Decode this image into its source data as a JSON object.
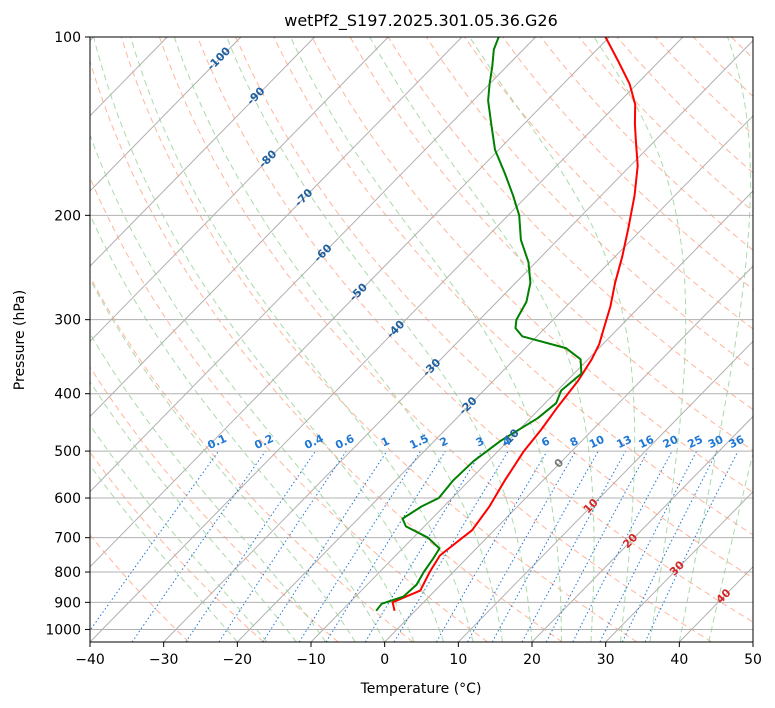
{
  "chart_data": {
    "type": "line",
    "title": "wetPf2_S197.2025.301.05.36.G26",
    "xlabel": "Temperature (°C)",
    "ylabel": "Pressure (hPa)",
    "xlim": [
      -40,
      50
    ],
    "ylim": [
      1050,
      100
    ],
    "y_scale": "log",
    "grid": true,
    "x_ticks": [
      -40,
      -30,
      -20,
      -10,
      0,
      10,
      20,
      30,
      40,
      50
    ],
    "x_tick_labels": [
      "−40",
      "−30",
      "−20",
      "−10",
      "0",
      "10",
      "20",
      "30",
      "40",
      "50"
    ],
    "y_ticks": [
      100,
      200,
      300,
      400,
      500,
      600,
      700,
      800,
      900,
      1000
    ],
    "y_tick_labels": [
      "100",
      "200",
      "300",
      "400",
      "500",
      "600",
      "700",
      "800",
      "900",
      "1000"
    ],
    "colors": {
      "temperature": "#ff0000",
      "dewpoint": "#008000",
      "isotherm_grid": "#b0b0b0",
      "dry_adiabat": "#ff9c7a",
      "moist_adiabat": "#8fcc8f",
      "mixing_ratio": "#1f77d4",
      "isotherm_labels": "#1f5fa0",
      "warm_labels": "#d62728"
    },
    "series": [
      {
        "key": "temperature",
        "points": [
          [
            -2.8,
            930
          ],
          [
            -4.2,
            900
          ],
          [
            -2.0,
            860
          ],
          [
            -3.2,
            800
          ],
          [
            -4.0,
            750
          ],
          [
            -3.0,
            680
          ],
          [
            -3.8,
            620
          ],
          [
            -5.2,
            560
          ],
          [
            -6.5,
            500
          ],
          [
            -7.0,
            460
          ],
          [
            -7.8,
            420
          ],
          [
            -8.5,
            380
          ],
          [
            -9.5,
            350
          ],
          [
            -10.5,
            330
          ],
          [
            -12.0,
            310
          ],
          [
            -14.0,
            285
          ],
          [
            -16.5,
            260
          ],
          [
            -19.0,
            235
          ],
          [
            -22.0,
            210
          ],
          [
            -25.5,
            185
          ],
          [
            -29.0,
            165
          ],
          [
            -32.5,
            150
          ],
          [
            -35.0,
            140
          ],
          [
            -37.5,
            130
          ],
          [
            -41.0,
            120
          ],
          [
            -45.5,
            110
          ],
          [
            -50.5,
            100
          ]
        ]
      },
      {
        "key": "dewpoint",
        "points": [
          [
            -5.3,
            930
          ],
          [
            -5.5,
            905
          ],
          [
            -3.5,
            880
          ],
          [
            -3.3,
            840
          ],
          [
            -4.0,
            800
          ],
          [
            -4.5,
            760
          ],
          [
            -5.0,
            730
          ],
          [
            -8.0,
            700
          ],
          [
            -12.5,
            670
          ],
          [
            -14.0,
            650
          ],
          [
            -13.0,
            620
          ],
          [
            -11.8,
            600
          ],
          [
            -12.2,
            560
          ],
          [
            -12.0,
            520
          ],
          [
            -11.0,
            480
          ],
          [
            -9.0,
            440
          ],
          [
            -8.5,
            415
          ],
          [
            -9.5,
            395
          ],
          [
            -9.0,
            370
          ],
          [
            -11.0,
            350
          ],
          [
            -14.5,
            335
          ],
          [
            -22.0,
            320
          ],
          [
            -24.0,
            310
          ],
          [
            -25.0,
            300
          ],
          [
            -26.0,
            280
          ],
          [
            -28.0,
            260
          ],
          [
            -31.0,
            240
          ],
          [
            -35.0,
            220
          ],
          [
            -38.5,
            200
          ],
          [
            -42.0,
            185
          ],
          [
            -46.0,
            170
          ],
          [
            -50.5,
            155
          ],
          [
            -54.5,
            140
          ],
          [
            -58.0,
            128
          ],
          [
            -60.0,
            120
          ],
          [
            -62.0,
            112
          ],
          [
            -64.0,
            105
          ],
          [
            -65.0,
            100
          ]
        ]
      }
    ],
    "isotherm_labels": [
      {
        "text": "-100",
        "t": -100,
        "p": 109
      },
      {
        "text": "-90",
        "t": -90,
        "p": 126
      },
      {
        "text": "-80",
        "t": -80,
        "p": 161
      },
      {
        "text": "-70",
        "t": -70,
        "p": 187
      },
      {
        "text": "-60",
        "t": -60,
        "p": 232
      },
      {
        "text": "-50",
        "t": -50,
        "p": 270
      },
      {
        "text": "-40",
        "t": -40,
        "p": 312
      },
      {
        "text": "-30",
        "t": -30,
        "p": 362
      },
      {
        "text": "-20",
        "t": -20,
        "p": 420
      },
      {
        "text": "-10",
        "t": -10,
        "p": 476
      },
      {
        "text": "0",
        "t": 0,
        "p": 525
      },
      {
        "text": "10",
        "t": 10,
        "p": 620
      },
      {
        "text": "20",
        "t": 20,
        "p": 710
      },
      {
        "text": "30",
        "t": 30,
        "p": 790
      },
      {
        "text": "40",
        "t": 40,
        "p": 880
      }
    ],
    "mixing_ratio_lines": [
      0.1,
      0.2,
      0.4,
      0.6,
      1,
      1.5,
      2,
      3,
      4,
      6,
      8,
      10,
      13,
      16,
      20,
      25,
      30,
      36
    ],
    "mixing_ratio_labels": [
      "0.1",
      "0.2",
      "0.4",
      "0.6",
      "1",
      "1.5",
      "2",
      "3",
      "4",
      "6",
      "8",
      "10",
      "13",
      "16",
      "20",
      "25",
      "30",
      "36"
    ],
    "mixing_ratio_label_pressure": 500
  }
}
